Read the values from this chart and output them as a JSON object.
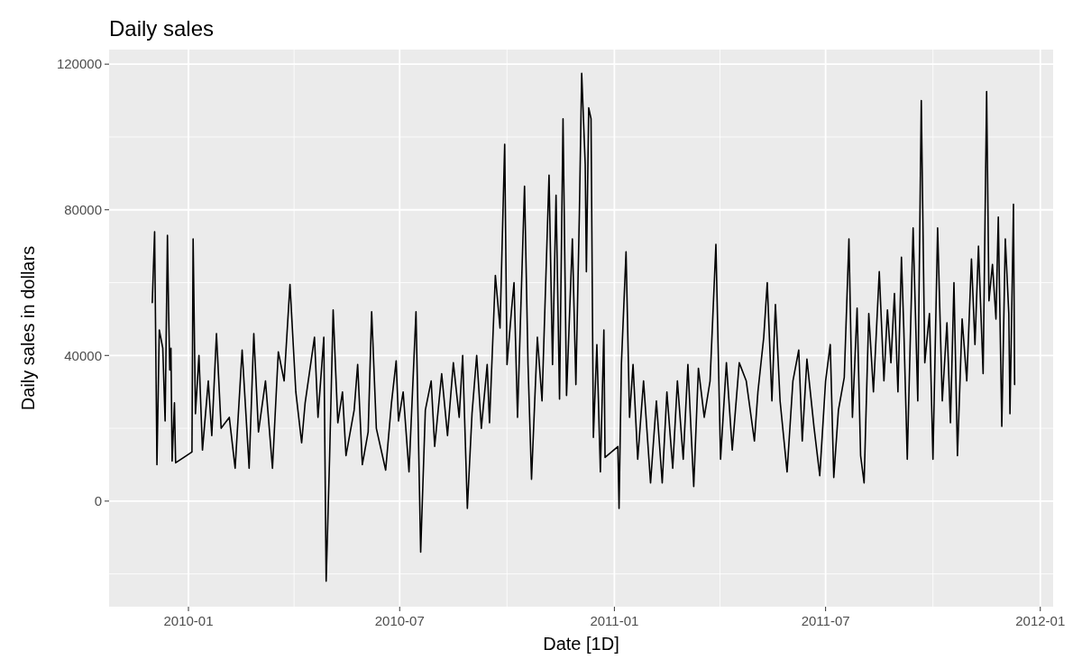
{
  "chart_data": {
    "type": "line",
    "title": "Daily sales",
    "xlabel": "Date [1D]",
    "ylabel": "Daily sales in dollars",
    "xlim": [
      "2009-10-25",
      "2012-01-12"
    ],
    "xticks": [
      "2010-01",
      "2010-07",
      "2011-01",
      "2011-07",
      "2012-01"
    ],
    "ylim": [
      -29000,
      124000
    ],
    "yticks": [
      0,
      40000,
      80000,
      120000
    ],
    "grid": true,
    "series": [
      {
        "color": "#000000",
        "x": [
          "2009-12-01",
          "2009-12-03",
          "2009-12-05",
          "2009-12-07",
          "2009-12-10",
          "2009-12-12",
          "2009-12-14",
          "2009-12-15",
          "2009-12-16",
          "2009-12-17",
          "2009-12-18",
          "2009-12-20",
          "2009-12-21",
          "2010-01-04",
          "2010-01-05",
          "2010-01-07",
          "2010-01-10",
          "2010-01-13",
          "2010-01-18",
          "2010-01-21",
          "2010-01-25",
          "2010-01-29",
          "2010-02-05",
          "2010-02-10",
          "2010-02-16",
          "2010-02-22",
          "2010-02-26",
          "2010-03-02",
          "2010-03-08",
          "2010-03-14",
          "2010-03-19",
          "2010-03-24",
          "2010-03-29",
          "2010-04-03",
          "2010-04-08",
          "2010-04-11",
          "2010-04-19",
          "2010-04-22",
          "2010-04-27",
          "2010-04-29",
          "2010-05-02",
          "2010-05-05",
          "2010-05-09",
          "2010-05-13",
          "2010-05-16",
          "2010-05-23",
          "2010-05-26",
          "2010-05-30",
          "2010-06-04",
          "2010-06-07",
          "2010-06-11",
          "2010-06-19",
          "2010-06-24",
          "2010-06-28",
          "2010-06-30",
          "2010-07-04",
          "2010-07-09",
          "2010-07-15",
          "2010-07-19",
          "2010-07-23",
          "2010-07-28",
          "2010-07-31",
          "2010-08-06",
          "2010-08-11",
          "2010-08-16",
          "2010-08-21",
          "2010-08-24",
          "2010-08-28",
          "2010-09-01",
          "2010-09-05",
          "2010-09-09",
          "2010-09-14",
          "2010-09-16",
          "2010-09-21",
          "2010-09-25",
          "2010-09-29",
          "2010-10-01",
          "2010-10-05",
          "2010-10-07",
          "2010-10-10",
          "2010-10-16",
          "2010-10-19",
          "2010-10-22",
          "2010-10-27",
          "2010-10-31",
          "2010-11-06",
          "2010-11-09",
          "2010-11-12",
          "2010-11-15",
          "2010-11-18",
          "2010-11-21",
          "2010-11-26",
          "2010-11-29",
          "2010-12-02",
          "2010-12-04",
          "2010-12-07",
          "2010-12-08",
          "2010-12-10",
          "2010-12-12",
          "2010-12-14",
          "2010-12-17",
          "2010-12-20",
          "2010-12-23",
          "2010-12-24",
          "2011-01-04",
          "2011-01-05",
          "2011-01-07",
          "2011-01-11",
          "2011-01-14",
          "2011-01-17",
          "2011-01-21",
          "2011-01-26",
          "2011-02-01",
          "2011-02-06",
          "2011-02-11",
          "2011-02-15",
          "2011-02-20",
          "2011-02-24",
          "2011-03-01",
          "2011-03-05",
          "2011-03-10",
          "2011-03-14",
          "2011-03-19",
          "2011-03-24",
          "2011-03-29",
          "2011-04-02",
          "2011-04-07",
          "2011-04-12",
          "2011-04-18",
          "2011-04-24",
          "2011-05-01",
          "2011-05-04",
          "2011-05-09",
          "2011-05-12",
          "2011-05-16",
          "2011-05-19",
          "2011-05-23",
          "2011-05-29",
          "2011-06-03",
          "2011-06-08",
          "2011-06-11",
          "2011-06-15",
          "2011-06-21",
          "2011-06-26",
          "2011-07-01",
          "2011-07-05",
          "2011-07-08",
          "2011-07-12",
          "2011-07-17",
          "2011-07-21",
          "2011-07-24",
          "2011-07-28",
          "2011-07-31",
          "2011-08-03",
          "2011-08-07",
          "2011-08-11",
          "2011-08-16",
          "2011-08-20",
          "2011-08-23",
          "2011-08-26",
          "2011-08-29",
          "2011-09-01",
          "2011-09-04",
          "2011-09-06",
          "2011-09-09",
          "2011-09-14",
          "2011-09-18",
          "2011-09-21",
          "2011-09-24",
          "2011-09-28",
          "2011-10-01",
          "2011-10-05",
          "2011-10-09",
          "2011-10-13",
          "2011-10-16",
          "2011-10-19",
          "2011-10-22",
          "2011-10-26",
          "2011-10-30",
          "2011-11-03",
          "2011-11-06",
          "2011-11-09",
          "2011-11-13",
          "2011-11-16",
          "2011-11-18",
          "2011-11-21",
          "2011-11-24",
          "2011-11-26",
          "2011-11-29",
          "2011-12-02",
          "2011-12-05",
          "2011-12-06",
          "2011-12-08",
          "2011-12-09",
          "2011-12-10"
        ],
        "values": [
          54500,
          74000,
          10000,
          47000,
          42000,
          22000,
          73000,
          52000,
          36000,
          42000,
          11000,
          27000,
          10500,
          13500,
          72000,
          24000,
          40000,
          14000,
          33000,
          18000,
          46000,
          20000,
          23000,
          9000,
          41500,
          9000,
          46000,
          19000,
          33000,
          9000,
          41000,
          33000,
          59500,
          30000,
          16000,
          27000,
          45000,
          23000,
          45000,
          -22000,
          12500,
          52500,
          21500,
          30000,
          12500,
          25000,
          37500,
          10000,
          19000,
          52000,
          20000,
          8500,
          27000,
          38500,
          22000,
          30000,
          8000,
          52000,
          -14000,
          25000,
          33000,
          15000,
          35000,
          18000,
          38000,
          23000,
          40000,
          -2000,
          24000,
          40000,
          20000,
          37500,
          21500,
          62000,
          47500,
          98000,
          37500,
          53000,
          60000,
          23000,
          86500,
          37500,
          6000,
          45000,
          27500,
          89500,
          37500,
          84000,
          28000,
          105000,
          29000,
          72000,
          32000,
          79000,
          117500,
          92500,
          63000,
          108000,
          105000,
          17500,
          43000,
          8000,
          47000,
          12000,
          15000,
          -2000,
          37500,
          68500,
          23000,
          37500,
          11500,
          33000,
          5000,
          27500,
          5000,
          30000,
          9000,
          33000,
          11500,
          37500,
          4000,
          36500,
          23000,
          33000,
          70500,
          11500,
          38000,
          14000,
          38000,
          33000,
          16500,
          30000,
          45000,
          60000,
          27500,
          54000,
          27500,
          8000,
          33000,
          41500,
          16500,
          39000,
          20500,
          7000,
          33000,
          43000,
          6500,
          25000,
          34000,
          72000,
          23000,
          53000,
          12500,
          5000,
          51500,
          30000,
          63000,
          33000,
          52500,
          38000,
          57000,
          30000,
          67000,
          47500,
          11500,
          75000,
          27500,
          110000,
          38000,
          51500,
          11500,
          75000,
          27500,
          49000,
          21500,
          60000,
          12500,
          50000,
          33000,
          66500,
          43000,
          70000,
          35000,
          112500,
          55000,
          65000,
          50000,
          78000,
          20500,
          72000,
          51500,
          24000,
          61500,
          81500,
          32000
        ]
      }
    ]
  }
}
